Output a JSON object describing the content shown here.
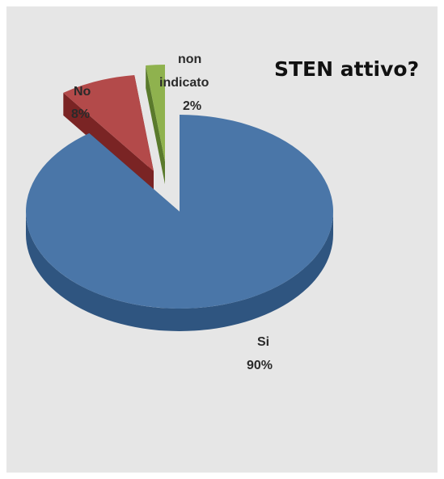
{
  "chart_data": {
    "type": "pie",
    "style": "3d-exploded",
    "title": "STEN attivo?",
    "legend": "none",
    "slices": [
      {
        "name": "Si",
        "value": 90,
        "label": "90%",
        "color": "#4a76a8",
        "side_color": "#2f5580"
      },
      {
        "name": "No",
        "value": 8,
        "label": "8%",
        "color": "#b34a4a",
        "side_color": "#7a2424"
      },
      {
        "name": "non indicato",
        "value": 2,
        "label": "2%",
        "color": "#8fb24e",
        "side_color": "#5a7a2c"
      }
    ]
  }
}
